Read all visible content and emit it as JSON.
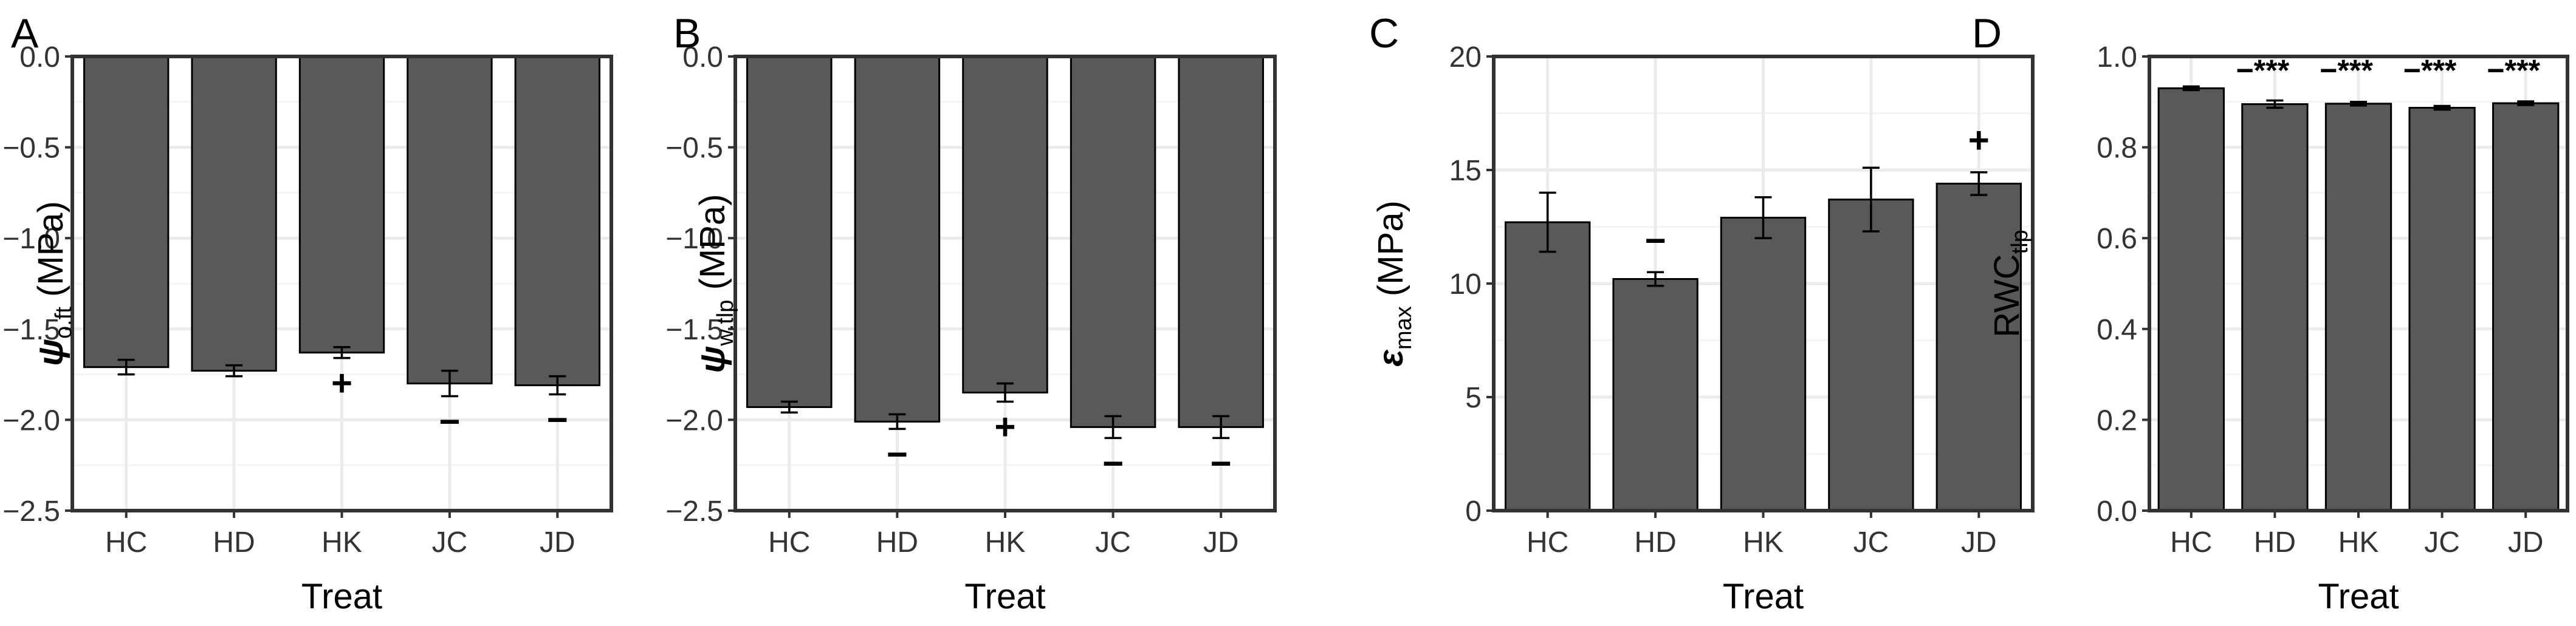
{
  "chart_data": [
    {
      "type": "bar",
      "panel": "A",
      "categories": [
        "HC",
        "HD",
        "HK",
        "JC",
        "JD"
      ],
      "values": [
        -1.71,
        -1.73,
        -1.63,
        -1.8,
        -1.81
      ],
      "errors": [
        0.04,
        0.03,
        0.03,
        0.07,
        0.05
      ],
      "annotations": [
        "",
        "",
        "+",
        "−",
        "−"
      ],
      "annotation_side": "below",
      "xlabel": "Treat",
      "ylabel": "ψ o.ft (MPa)",
      "ylabel_symbol": "ψ",
      "ylabel_sub": "o.ft",
      "ylabel_unit": "(MPa)",
      "ylim": [
        -2.5,
        0.0
      ],
      "yticks": [
        0.0,
        -0.5,
        -1.0,
        -1.5,
        -2.0,
        -2.5
      ],
      "ytick_labels": [
        "0.0",
        "−0.5",
        "−1.0",
        "−1.5",
        "−2.0",
        "−2.5"
      ]
    },
    {
      "type": "bar",
      "panel": "B",
      "categories": [
        "HC",
        "HD",
        "HK",
        "JC",
        "JD"
      ],
      "values": [
        -1.93,
        -2.01,
        -1.85,
        -2.04,
        -2.04
      ],
      "errors": [
        0.03,
        0.04,
        0.05,
        0.06,
        0.06
      ],
      "annotations": [
        "",
        "−",
        "+",
        "−",
        "−"
      ],
      "annotation_side": "below",
      "xlabel": "Treat",
      "ylabel": "ψ w.tlp (MPa)",
      "ylabel_symbol": "ψ",
      "ylabel_sub": "w.tlp",
      "ylabel_unit": "(MPa)",
      "ylim": [
        -2.5,
        0.0
      ],
      "yticks": [
        0.0,
        -0.5,
        -1.0,
        -1.5,
        -2.0,
        -2.5
      ],
      "ytick_labels": [
        "0.0",
        "−0.5",
        "−1.0",
        "−1.5",
        "−2.0",
        "−2.5"
      ]
    },
    {
      "type": "bar",
      "panel": "C",
      "categories": [
        "HC",
        "HD",
        "HK",
        "JC",
        "JD"
      ],
      "values": [
        12.7,
        10.2,
        12.9,
        13.7,
        14.4
      ],
      "errors": [
        1.3,
        0.3,
        0.9,
        1.4,
        0.5
      ],
      "annotations": [
        "",
        "−",
        "",
        "",
        "+"
      ],
      "annotation_side": "above",
      "xlabel": "Treat",
      "ylabel": "ε max (MPa)",
      "ylabel_symbol": "ε",
      "ylabel_sub": "max",
      "ylabel_unit": "(MPa)",
      "ylim": [
        0,
        20
      ],
      "yticks": [
        0,
        5,
        10,
        15,
        20
      ],
      "ytick_labels": [
        "0",
        "5",
        "10",
        "15",
        "20"
      ]
    },
    {
      "type": "bar",
      "panel": "D",
      "categories": [
        "HC",
        "HD",
        "HK",
        "JC",
        "JD"
      ],
      "values": [
        0.93,
        0.895,
        0.896,
        0.887,
        0.897
      ],
      "errors": [
        0.004,
        0.008,
        0.004,
        0.004,
        0.004
      ],
      "annotations": [
        "",
        "−***",
        "−***",
        "−***",
        "−***"
      ],
      "annotation_side": "top",
      "xlabel": "Treat",
      "ylabel": "RWC tlp",
      "ylabel_symbol": "RWC",
      "ylabel_sub": "tlp",
      "ylabel_unit": "",
      "ylim": [
        0.0,
        1.0
      ],
      "yticks": [
        0.0,
        0.2,
        0.4,
        0.6,
        0.8,
        1.0
      ],
      "ytick_labels": [
        "0.0",
        "0.2",
        "0.4",
        "0.6",
        "0.8",
        "1.0"
      ]
    }
  ],
  "colors": {
    "bar_fill": "#595959",
    "bar_stroke": "#000000",
    "grid_major": "#ebebeb",
    "grid_minor": "#f4f4f4",
    "panel_border": "#333333",
    "tick_text": "#333333"
  }
}
